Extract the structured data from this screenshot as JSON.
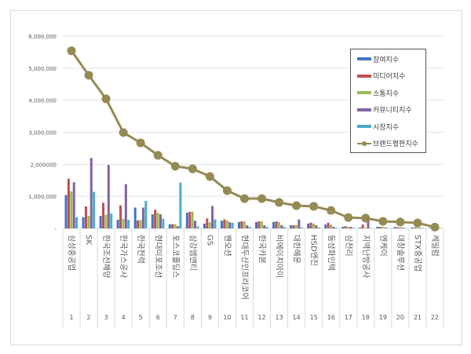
{
  "chart_data": {
    "type": "bar+line",
    "title": "",
    "ylim": [
      0,
      6000000
    ],
    "yticks": [
      "-",
      "1,000,000",
      "2,000000",
      "3,000,000",
      "4,000,000",
      "5,000,000",
      "6,000,000"
    ],
    "ytick_values": [
      0,
      1000000,
      2000000,
      3000000,
      4000000,
      5000000,
      6000000
    ],
    "categories": [
      "삼성중공업",
      "SK",
      "한국조선해양",
      "한국가스공사",
      "한국전력",
      "현대미포조선",
      "포스코홀딩스",
      "삼강엠앤티",
      "GS",
      "팬오션",
      "현대두산인프라코어",
      "한국카본",
      "비에이치아이",
      "대한해운",
      "HSD엔진",
      "동성화인텍",
      "삼천리",
      "지역난방공사",
      "엔케이",
      "대창솔루션",
      "STX중공업",
      "케일럼"
    ],
    "ranks": [
      "1",
      "2",
      "3",
      "4",
      "5",
      "6",
      "7",
      "8",
      "9",
      "10",
      "11",
      "12",
      "13",
      "14",
      "15",
      "16",
      "17",
      "18",
      "19",
      "20",
      "21",
      "22"
    ],
    "series": [
      {
        "name": "참여지수",
        "type": "bar",
        "color": "#4472c4",
        "values": [
          1040000,
          350000,
          390000,
          270000,
          650000,
          440000,
          130000,
          490000,
          150000,
          240000,
          200000,
          200000,
          200000,
          100000,
          150000,
          120000,
          50000,
          30000,
          50000,
          40000,
          30000,
          10000
        ]
      },
      {
        "name": "미디어지수",
        "type": "bar",
        "color": "#c0504d",
        "values": [
          1550000,
          690000,
          800000,
          720000,
          250000,
          580000,
          130000,
          520000,
          310000,
          280000,
          220000,
          220000,
          220000,
          100000,
          180000,
          180000,
          70000,
          120000,
          50000,
          40000,
          30000,
          10000
        ]
      },
      {
        "name": "소통지수",
        "type": "bar",
        "color": "#9bbb59",
        "values": [
          1160000,
          390000,
          430000,
          300000,
          260000,
          490000,
          130000,
          520000,
          190000,
          250000,
          220000,
          220000,
          200000,
          100000,
          150000,
          120000,
          50000,
          20000,
          50000,
          40000,
          30000,
          10000
        ]
      },
      {
        "name": "커뮤니티지수",
        "type": "bar",
        "color": "#8064a2",
        "values": [
          1440000,
          2200000,
          1980000,
          1380000,
          650000,
          440000,
          70000,
          240000,
          700000,
          190000,
          100000,
          100000,
          100000,
          280000,
          100000,
          50000,
          50000,
          250000,
          30000,
          30000,
          20000,
          10000
        ]
      },
      {
        "name": "시장지수",
        "type": "bar",
        "color": "#4bacc6",
        "values": [
          350000,
          1140000,
          460000,
          270000,
          860000,
          300000,
          1430000,
          60000,
          280000,
          180000,
          50000,
          50000,
          50000,
          30000,
          30000,
          20000,
          20000,
          10000,
          10000,
          10000,
          10000,
          10000
        ]
      },
      {
        "name": "브랜드평판지수",
        "type": "line",
        "color": "#948a54",
        "values": [
          5540000,
          4780000,
          4040000,
          2990000,
          2670000,
          2280000,
          1940000,
          1860000,
          1620000,
          1180000,
          930000,
          930000,
          810000,
          710000,
          690000,
          560000,
          340000,
          320000,
          220000,
          200000,
          170000,
          40000
        ]
      }
    ],
    "legend_placement": "right"
  }
}
